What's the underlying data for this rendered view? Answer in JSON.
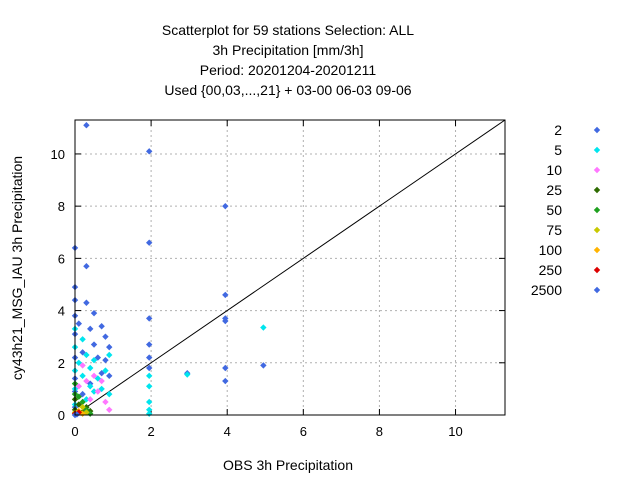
{
  "chart_data": {
    "type": "scatter",
    "title_lines": [
      "Scatterplot for   59 stations Selection: ALL",
      "3h Precipitation [mm/3h]",
      "Period: 20201204-20201211",
      "Used {00,03,...,21} + 03-00 06-03 09-06"
    ],
    "xlabel": "OBS 3h Precipitation",
    "ylabel": "cy43h21_MSG_IAU 3h Precipitation",
    "xlim": [
      0,
      11.3
    ],
    "ylim": [
      0,
      11.3
    ],
    "xticks": [
      "0",
      "2",
      "4",
      "6",
      "8",
      "10"
    ],
    "yticks": [
      "0",
      "2",
      "4",
      "6",
      "8",
      "10"
    ],
    "grid": true,
    "legend_position": "right",
    "diagonal": [
      [
        0,
        0
      ],
      [
        11.3,
        11.3
      ]
    ],
    "series": [
      {
        "name": "2",
        "color": "#4169e1",
        "points": [
          [
            0,
            0.3
          ],
          [
            0,
            0.9
          ],
          [
            0,
            1.4
          ],
          [
            0,
            2.2
          ],
          [
            0,
            3.1
          ],
          [
            0,
            3.8
          ],
          [
            0,
            4.4
          ],
          [
            0,
            4.9
          ],
          [
            0,
            6.4
          ],
          [
            0.1,
            3.5
          ],
          [
            0.2,
            0.8
          ],
          [
            0.2,
            2.4
          ],
          [
            0.3,
            5.7
          ],
          [
            0.3,
            4.3
          ],
          [
            0.3,
            11.1
          ],
          [
            0.4,
            1.2
          ],
          [
            0.4,
            3.3
          ],
          [
            0.5,
            2.7
          ],
          [
            0.5,
            3.9
          ],
          [
            0.6,
            2.2
          ],
          [
            0.7,
            1.6
          ],
          [
            0.7,
            3.4
          ],
          [
            0.8,
            2.1
          ],
          [
            0.8,
            3.0
          ],
          [
            0.9,
            1.5
          ],
          [
            0.9,
            2.6
          ],
          [
            1.95,
            10.1
          ],
          [
            1.95,
            6.6
          ],
          [
            1.95,
            3.7
          ],
          [
            1.95,
            2.7
          ],
          [
            1.95,
            2.2
          ],
          [
            1.95,
            1.8
          ],
          [
            2.95,
            1.6
          ],
          [
            3.95,
            8.0
          ],
          [
            3.95,
            4.6
          ],
          [
            3.95,
            3.7
          ],
          [
            3.95,
            3.6
          ],
          [
            3.95,
            1.8
          ],
          [
            3.95,
            1.3
          ],
          [
            4.95,
            1.9
          ]
        ]
      },
      {
        "name": "5",
        "color": "#00e5ee",
        "points": [
          [
            0,
            0.4
          ],
          [
            0,
            1.0
          ],
          [
            0,
            1.7
          ],
          [
            0,
            2.6
          ],
          [
            0,
            3.3
          ],
          [
            0.1,
            2.0
          ],
          [
            0.2,
            1.5
          ],
          [
            0.2,
            2.9
          ],
          [
            0.3,
            0.6
          ],
          [
            0.3,
            2.3
          ],
          [
            0.4,
            1.1
          ],
          [
            0.4,
            1.8
          ],
          [
            0.5,
            0.9
          ],
          [
            0.5,
            2.1
          ],
          [
            0.6,
            1.4
          ],
          [
            0.7,
            1.0
          ],
          [
            0.8,
            1.7
          ],
          [
            0.9,
            2.3
          ],
          [
            0.9,
            0.8
          ],
          [
            1.95,
            0.2
          ],
          [
            1.95,
            0.5
          ],
          [
            1.95,
            1.1
          ],
          [
            1.95,
            1.5
          ],
          [
            1.95,
            0.05
          ],
          [
            2.95,
            1.55
          ],
          [
            4.95,
            3.35
          ]
        ]
      },
      {
        "name": "10",
        "color": "#ff77ff",
        "points": [
          [
            0.1,
            1.1
          ],
          [
            0.2,
            1.9
          ],
          [
            0.3,
            1.3
          ],
          [
            0.4,
            0.6
          ],
          [
            0.5,
            1.5
          ],
          [
            0.6,
            0.9
          ],
          [
            0.7,
            1.3
          ],
          [
            0.8,
            0.5
          ],
          [
            0.9,
            0.2
          ]
        ]
      },
      {
        "name": "25",
        "color": "#2e6b00",
        "points": [
          [
            0,
            0.2
          ],
          [
            0,
            0.6
          ],
          [
            0.1,
            0.4
          ],
          [
            0.2,
            0.1
          ],
          [
            0.3,
            0.3
          ],
          [
            0.4,
            0.15
          ]
        ]
      },
      {
        "name": "50",
        "color": "#1fa01f",
        "points": [
          [
            0,
            0.8
          ],
          [
            0,
            1.2
          ],
          [
            0.1,
            0.7
          ],
          [
            0.2,
            0.5
          ],
          [
            0.3,
            0.2
          ],
          [
            0.4,
            0.05
          ]
        ]
      },
      {
        "name": "75",
        "color": "#c8c800",
        "points": [
          [
            0,
            0.1
          ],
          [
            0.2,
            0.3
          ],
          [
            0.3,
            0.1
          ]
        ]
      },
      {
        "name": "100",
        "color": "#ffb400",
        "points": [
          [
            0.1,
            0.15
          ],
          [
            0.2,
            0.05
          ]
        ]
      },
      {
        "name": "250",
        "color": "#dd0000",
        "points": [
          [
            0,
            0.05
          ],
          [
            0.1,
            0.1
          ]
        ]
      },
      {
        "name": "2500",
        "color": "#4169e1",
        "points": [
          [
            0,
            0
          ],
          [
            0.05,
            0.02
          ]
        ]
      }
    ]
  }
}
